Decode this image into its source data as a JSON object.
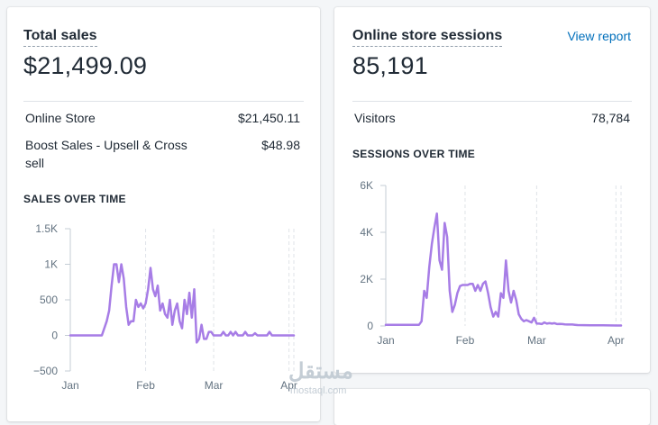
{
  "sales_card": {
    "title": "Total sales",
    "total": "$21,499.09",
    "rows": [
      {
        "label": "Online Store",
        "value": "$21,450.11"
      },
      {
        "label": "Boost Sales - Upsell & Cross sell",
        "value": "$48.98"
      }
    ],
    "chart_heading": "SALES OVER TIME"
  },
  "sessions_card": {
    "title": "Online store sessions",
    "link": "View report",
    "total": "85,191",
    "rows": [
      {
        "label": "Visitors",
        "value": "78,784"
      }
    ],
    "chart_heading": "SESSIONS OVER TIME"
  },
  "watermark": {
    "text": "مستقل",
    "sub": "mostaql.com"
  },
  "colors": {
    "line": "#a77de6",
    "grid": "#dfe3e8",
    "axis": "#c4cdd5",
    "link": "#006fbb"
  },
  "chart_data": [
    {
      "type": "line",
      "title": "SALES OVER TIME",
      "xlabel": "",
      "ylabel": "",
      "xlim": [
        0,
        92
      ],
      "ylim": [
        -500,
        1500
      ],
      "y_ticks": [
        -500,
        0,
        500,
        1000,
        1500
      ],
      "y_tick_labels": [
        "−500",
        "0",
        "500",
        "1K",
        "1.5K"
      ],
      "x_ticks": [
        0,
        31,
        59,
        90
      ],
      "x_tick_labels": [
        "Jan",
        "Feb",
        "Mar",
        "Apr"
      ],
      "grid": "vertical-dashed",
      "series": [
        {
          "color": "#a77de6",
          "x": [
            0,
            13,
            15,
            16,
            17,
            18,
            19,
            20,
            21,
            22,
            23,
            24,
            25,
            26,
            27,
            28,
            29,
            30,
            31,
            32,
            33,
            34,
            35,
            36,
            37,
            38,
            39,
            40,
            41,
            42,
            43,
            44,
            45,
            46,
            47,
            48,
            49,
            50,
            51,
            52,
            53,
            54,
            55,
            56,
            57,
            58,
            59,
            60,
            61,
            62,
            63,
            64,
            65,
            66,
            67,
            68,
            69,
            70,
            71,
            72,
            73,
            74,
            75,
            76,
            77,
            78,
            79,
            80,
            81,
            82,
            83,
            84,
            85,
            86,
            87,
            88,
            89,
            90,
            91,
            92
          ],
          "y": [
            0,
            0,
            200,
            350,
            700,
            1000,
            1000,
            750,
            1000,
            800,
            400,
            150,
            200,
            200,
            500,
            400,
            450,
            380,
            450,
            650,
            950,
            650,
            550,
            700,
            350,
            450,
            300,
            250,
            500,
            150,
            350,
            450,
            200,
            100,
            500,
            300,
            600,
            250,
            650,
            -100,
            -50,
            150,
            -50,
            -50,
            50,
            50,
            0,
            0,
            0,
            0,
            50,
            0,
            0,
            50,
            0,
            50,
            0,
            0,
            0,
            50,
            0,
            0,
            0,
            30,
            0,
            0,
            0,
            0,
            0,
            50,
            0,
            0,
            0,
            0,
            0,
            0,
            0,
            0,
            0,
            0
          ]
        }
      ]
    },
    {
      "type": "line",
      "title": "SESSIONS OVER TIME",
      "xlabel": "",
      "ylabel": "",
      "xlim": [
        0,
        92
      ],
      "ylim": [
        0,
        6000
      ],
      "y_ticks": [
        0,
        2000,
        4000,
        6000
      ],
      "y_tick_labels": [
        "0",
        "2K",
        "4K",
        "6K"
      ],
      "x_ticks": [
        0,
        31,
        59,
        90
      ],
      "x_tick_labels": [
        "Jan",
        "Feb",
        "Mar",
        "Apr"
      ],
      "grid": "vertical-dashed",
      "series": [
        {
          "color": "#a77de6",
          "x": [
            0,
            13,
            14,
            15,
            16,
            17,
            18,
            19,
            20,
            21,
            22,
            23,
            24,
            25,
            26,
            27,
            28,
            29,
            30,
            31,
            32,
            33,
            34,
            35,
            36,
            37,
            38,
            39,
            40,
            41,
            42,
            43,
            44,
            45,
            46,
            47,
            48,
            49,
            50,
            51,
            52,
            53,
            54,
            55,
            56,
            57,
            58,
            59,
            60,
            61,
            62,
            63,
            64,
            65,
            66,
            67,
            68,
            69,
            70,
            71,
            72,
            73,
            74,
            75,
            80,
            85,
            90,
            92
          ],
          "y": [
            50,
            50,
            200,
            1500,
            1200,
            2500,
            3500,
            4200,
            4800,
            2800,
            2400,
            4400,
            3800,
            1500,
            600,
            900,
            1400,
            1700,
            1750,
            1750,
            1750,
            1800,
            1800,
            1500,
            1750,
            1500,
            1800,
            1900,
            1400,
            800,
            400,
            600,
            400,
            1400,
            1200,
            2800,
            1500,
            1000,
            1500,
            1100,
            500,
            300,
            200,
            250,
            200,
            150,
            350,
            100,
            100,
            80,
            150,
            100,
            120,
            100,
            120,
            80,
            90,
            80,
            70,
            60,
            60,
            60,
            50,
            40,
            30,
            30,
            20,
            20
          ]
        }
      ]
    }
  ]
}
